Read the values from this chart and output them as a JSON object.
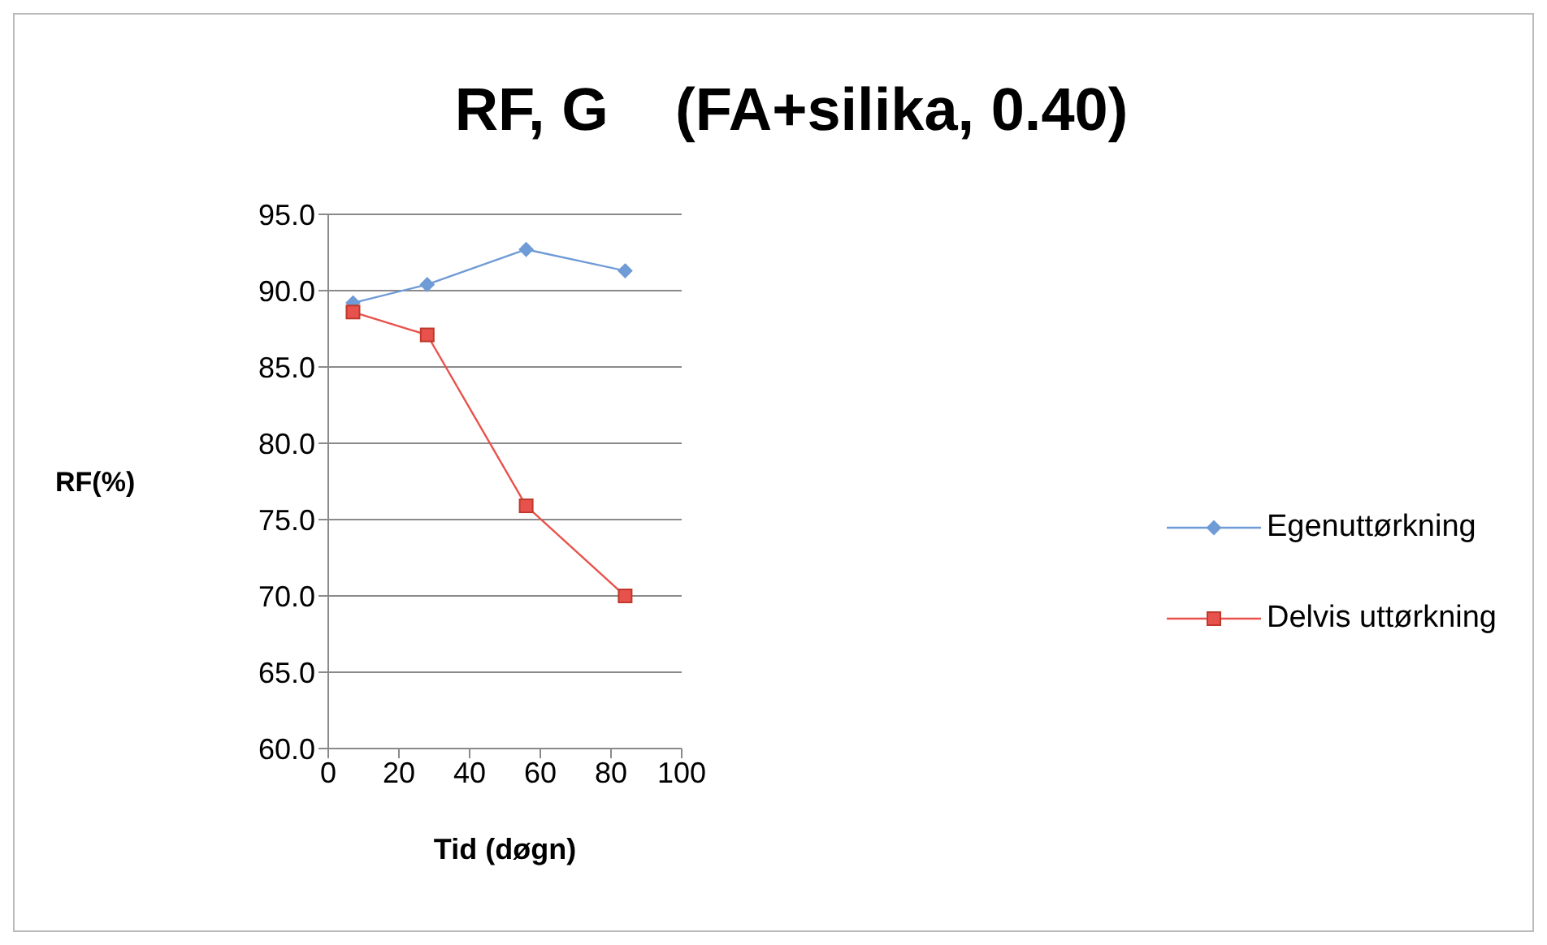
{
  "chart_data": {
    "type": "line",
    "title": "RF, G    (FA+silika, 0.40)",
    "xlabel": "Tid (døgn)",
    "ylabel": "RF(%)",
    "xlim": [
      0,
      100
    ],
    "xticks": [
      0,
      20,
      40,
      60,
      80,
      100
    ],
    "ylim": [
      60,
      95
    ],
    "yticks": [
      {
        "value": 60,
        "label": "60.0"
      },
      {
        "value": 65,
        "label": "65.0"
      },
      {
        "value": 70,
        "label": "70.0"
      },
      {
        "value": 75,
        "label": "75.0"
      },
      {
        "value": 80,
        "label": "80.0"
      },
      {
        "value": 85,
        "label": "85.0"
      },
      {
        "value": 90,
        "label": "90.0"
      },
      {
        "value": 95,
        "label": "95.0"
      }
    ],
    "grid": "y",
    "legend": "right",
    "line_style": "solid",
    "series": [
      {
        "name": "Egenuttørkning",
        "color": "#6f9bd6",
        "marker": "diamond",
        "x": [
          7,
          28,
          56,
          84
        ],
        "values": [
          89.2,
          90.4,
          92.7,
          91.3
        ]
      },
      {
        "name": "Delvis uttørkning",
        "color": "#e8524c",
        "marker": "square",
        "x": [
          7,
          28,
          56,
          84
        ],
        "values": [
          88.6,
          87.1,
          75.9,
          70.0
        ]
      }
    ]
  }
}
